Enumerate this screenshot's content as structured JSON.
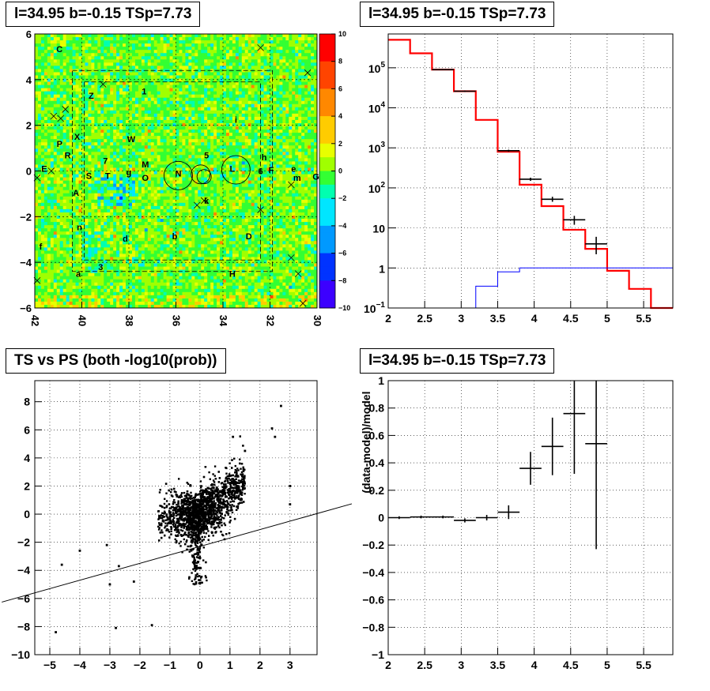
{
  "titles": {
    "map": "l=34.95 b=-0.15 TSp=7.73",
    "spectrum": "l=34.95 b=-0.15 TSp=7.73",
    "scatter": "TS vs PS (both -log10(prob))",
    "residual": "l=34.95 b=-0.15 TSp=7.73"
  },
  "chart_data": [
    {
      "type": "heatmap",
      "title": "l=34.95 b=-0.15 TSp=7.73",
      "xlim": [
        42,
        30
      ],
      "ylim": [
        -6,
        6
      ],
      "x_ticks": [
        "42",
        "40",
        "38",
        "36",
        "34",
        "32",
        "30"
      ],
      "y_ticks": [
        "-6",
        "-4",
        "-2",
        "0",
        "2",
        "4",
        "6"
      ],
      "colorbar": {
        "min": -10,
        "max": 10,
        "ticks": [
          "-10",
          "-8",
          "-6",
          "-4",
          "-2",
          "0",
          "2",
          "4",
          "6",
          "8",
          "10"
        ]
      },
      "grid": true,
      "source_labels": [
        {
          "t": "C",
          "x": 40.95,
          "y": 5.35
        },
        {
          "t": "Z",
          "x": 39.6,
          "y": 3.3
        },
        {
          "t": "1",
          "x": 37.35,
          "y": 3.5
        },
        {
          "t": "i",
          "x": 33.45,
          "y": 2.25
        },
        {
          "t": "X",
          "x": 40.2,
          "y": 1.5
        },
        {
          "t": "W",
          "x": 37.9,
          "y": 1.4
        },
        {
          "t": "P",
          "x": 40.95,
          "y": 1.2
        },
        {
          "t": "R",
          "x": 40.6,
          "y": 0.7
        },
        {
          "t": "7",
          "x": 39.0,
          "y": 0.45
        },
        {
          "t": "5",
          "x": 34.7,
          "y": 0.7
        },
        {
          "t": "h",
          "x": 32.25,
          "y": 0.6
        },
        {
          "t": "M",
          "x": 37.3,
          "y": 0.3
        },
        {
          "t": "E",
          "x": 41.6,
          "y": 0.1
        },
        {
          "t": "S",
          "x": 39.7,
          "y": -0.2
        },
        {
          "t": "T",
          "x": 38.9,
          "y": -0.2
        },
        {
          "t": "g",
          "x": 38.0,
          "y": -0.05
        },
        {
          "t": "O",
          "x": 37.3,
          "y": -0.3
        },
        {
          "t": "N",
          "x": 35.9,
          "y": -0.1
        },
        {
          "t": "L",
          "x": 33.6,
          "y": 0.1
        },
        {
          "t": "6",
          "x": 32.4,
          "y": 0.0
        },
        {
          "t": "F",
          "x": 31.95,
          "y": 0.05
        },
        {
          "t": "e",
          "x": 31.0,
          "y": 0.1
        },
        {
          "t": "m",
          "x": 30.85,
          "y": -0.3
        },
        {
          "t": "G",
          "x": 30.05,
          "y": -0.25
        },
        {
          "t": "A",
          "x": 40.25,
          "y": -0.95
        },
        {
          "t": "k",
          "x": 34.7,
          "y": -1.3
        },
        {
          "t": "n",
          "x": 40.1,
          "y": -2.45
        },
        {
          "t": "d",
          "x": 38.15,
          "y": -2.95
        },
        {
          "t": "b",
          "x": 36.05,
          "y": -2.85
        },
        {
          "t": "D",
          "x": 32.9,
          "y": -2.85
        },
        {
          "t": "f",
          "x": 41.75,
          "y": -3.3
        },
        {
          "t": "3",
          "x": 39.2,
          "y": -4.2
        },
        {
          "t": "a",
          "x": 40.15,
          "y": -4.5
        },
        {
          "t": "H",
          "x": 33.6,
          "y": -4.5
        }
      ]
    },
    {
      "type": "line",
      "title": "l=34.95 b=-0.15 TSp=7.73",
      "xlim": [
        2,
        5.9
      ],
      "ylim": [
        0.1,
        700000
      ],
      "y_scale": "log",
      "x_ticks": [
        "2",
        "2.5",
        "3",
        "3.5",
        "4",
        "4.5",
        "5",
        "5.5"
      ],
      "y_ticks": [
        "10^-1",
        "1",
        "10",
        "10^2",
        "10^3",
        "10^4",
        "10^5"
      ],
      "grid": true,
      "series": [
        {
          "color": "#ff0000",
          "bins": [
            [
              2,
              2.3,
              500000
            ],
            [
              2.3,
              2.6,
              230000
            ],
            [
              2.6,
              2.9,
              90000
            ],
            [
              2.9,
              3.2,
              26000
            ],
            [
              3.2,
              3.5,
              5000
            ],
            [
              3.5,
              3.8,
              800
            ],
            [
              3.8,
              4.1,
              120
            ],
            [
              4.1,
              4.4,
              35
            ],
            [
              4.4,
              4.7,
              9
            ],
            [
              4.7,
              5.0,
              3
            ],
            [
              5.0,
              5.3,
              0.85
            ],
            [
              5.3,
              5.6,
              0.3
            ],
            [
              5.6,
              5.9,
              0.1
            ]
          ]
        },
        {
          "color": "#0000ff",
          "bins": [
            [
              2.9,
              3.2,
              0.1
            ],
            [
              3.2,
              3.5,
              0.35
            ],
            [
              3.5,
              3.8,
              0.8
            ],
            [
              3.8,
              4.1,
              1.0
            ],
            [
              4.1,
              5.9,
              1.0
            ]
          ]
        }
      ],
      "points": [
        {
          "x": 2.75,
          "y": 90000,
          "xerr": 0.15,
          "ylo": 88000,
          "yhi": 92000
        },
        {
          "x": 3.05,
          "y": 26000,
          "xerr": 0.15,
          "ylo": 25000,
          "yhi": 27000
        },
        {
          "x": 3.65,
          "y": 850,
          "xerr": 0.15,
          "ylo": 800,
          "yhi": 900
        },
        {
          "x": 3.95,
          "y": 165,
          "xerr": 0.15,
          "ylo": 150,
          "yhi": 180
        },
        {
          "x": 4.25,
          "y": 52,
          "xerr": 0.15,
          "ylo": 45,
          "yhi": 60
        },
        {
          "x": 4.55,
          "y": 16,
          "xerr": 0.15,
          "ylo": 12,
          "yhi": 20
        },
        {
          "x": 4.85,
          "y": 4,
          "xerr": 0.15,
          "ylo": 2.2,
          "yhi": 6
        }
      ]
    },
    {
      "type": "scatter",
      "title": "TS vs PS (both -log10(prob))",
      "xlim": [
        -5.5,
        3.9
      ],
      "ylim": [
        -10,
        9.5
      ],
      "x_ticks": [
        "-5",
        "-4",
        "-3",
        "-2",
        "-1",
        "0",
        "1",
        "2",
        "3"
      ],
      "y_ticks": [
        "-10",
        "-8",
        "-6",
        "-4",
        "-2",
        "0",
        "2",
        "4",
        "6",
        "8"
      ],
      "grid": true,
      "fit_line": {
        "slope": 0.6,
        "intercept": -2.3
      },
      "outliers": [
        [
          2.7,
          7.7
        ],
        [
          2.4,
          6.1
        ],
        [
          1.1,
          5.5
        ],
        [
          -2.2,
          -4.8
        ],
        [
          -4.6,
          -3.6
        ],
        [
          -4.0,
          -2.6
        ],
        [
          -3.1,
          -2.2
        ],
        [
          -3.0,
          -5.0
        ],
        [
          -2.8,
          -8.1
        ],
        [
          -4.8,
          -8.4
        ],
        [
          -1.6,
          -7.9
        ],
        [
          -2.7,
          -3.7
        ],
        [
          3.0,
          0.7
        ],
        [
          3.0,
          2.0
        ],
        [
          2.5,
          5.5
        ],
        [
          1.5,
          4.5
        ]
      ]
    },
    {
      "type": "scatter",
      "title": "l=34.95 b=-0.15 TSp=7.73",
      "ylabel": "(data-model)/model",
      "xlim": [
        2,
        5.9
      ],
      "ylim": [
        -1,
        1
      ],
      "x_ticks": [
        "2",
        "2.5",
        "3",
        "3.5",
        "4",
        "4.5",
        "5",
        "5.5"
      ],
      "y_ticks": [
        "-1",
        "-0.8",
        "-0.6",
        "-0.4",
        "-0.2",
        "0",
        "0.2",
        "0.4",
        "0.6",
        "0.8",
        "1"
      ],
      "grid": true,
      "points": [
        {
          "x": 2.15,
          "y": 0.0,
          "xerr": 0.15,
          "yerr": 0.01
        },
        {
          "x": 2.45,
          "y": 0.005,
          "xerr": 0.15,
          "yerr": 0.01
        },
        {
          "x": 2.75,
          "y": 0.005,
          "xerr": 0.15,
          "yerr": 0.01
        },
        {
          "x": 3.05,
          "y": -0.02,
          "xerr": 0.15,
          "yerr": 0.015
        },
        {
          "x": 3.35,
          "y": 0.0,
          "xerr": 0.15,
          "yerr": 0.02
        },
        {
          "x": 3.65,
          "y": 0.04,
          "xerr": 0.15,
          "yerr": 0.05
        },
        {
          "x": 3.95,
          "y": 0.36,
          "xerr": 0.15,
          "yerr": 0.12
        },
        {
          "x": 4.25,
          "y": 0.52,
          "xerr": 0.15,
          "yerr": 0.21
        },
        {
          "x": 4.55,
          "y": 0.76,
          "xerr": 0.15,
          "yerr": 0.44
        },
        {
          "x": 4.85,
          "y": 0.54,
          "xerr": 0.15,
          "yerr": 0.77
        }
      ]
    }
  ]
}
